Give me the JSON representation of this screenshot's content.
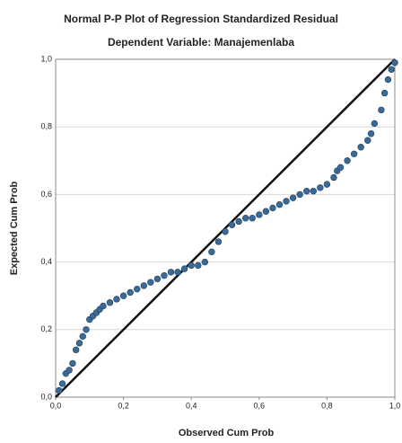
{
  "chart_data": {
    "type": "scatter",
    "title": "Normal P-P Plot of Regression Standardized Residual",
    "subtitle": "Dependent Variable: Manajemenlaba",
    "x_label": "Observed Cum Prob",
    "y_label": "Expected Cum Prob",
    "x": [
      0.01,
      0.02,
      0.03,
      0.04,
      0.05,
      0.06,
      0.07,
      0.08,
      0.09,
      0.1,
      0.11,
      0.12,
      0.13,
      0.14,
      0.16,
      0.18,
      0.2,
      0.22,
      0.24,
      0.26,
      0.28,
      0.3,
      0.32,
      0.34,
      0.36,
      0.38,
      0.4,
      0.42,
      0.44,
      0.46,
      0.48,
      0.5,
      0.52,
      0.54,
      0.56,
      0.58,
      0.6,
      0.62,
      0.64,
      0.66,
      0.68,
      0.7,
      0.72,
      0.74,
      0.76,
      0.78,
      0.8,
      0.82,
      0.83,
      0.84,
      0.86,
      0.88,
      0.9,
      0.92,
      0.93,
      0.94,
      0.96,
      0.97,
      0.98,
      0.99,
      1.0
    ],
    "values": [
      0.02,
      0.04,
      0.07,
      0.08,
      0.1,
      0.14,
      0.16,
      0.18,
      0.2,
      0.23,
      0.24,
      0.25,
      0.26,
      0.27,
      0.28,
      0.29,
      0.3,
      0.31,
      0.32,
      0.33,
      0.34,
      0.35,
      0.36,
      0.37,
      0.37,
      0.38,
      0.39,
      0.39,
      0.4,
      0.43,
      0.46,
      0.49,
      0.51,
      0.52,
      0.53,
      0.53,
      0.54,
      0.55,
      0.56,
      0.57,
      0.58,
      0.59,
      0.6,
      0.61,
      0.61,
      0.62,
      0.63,
      0.65,
      0.67,
      0.68,
      0.7,
      0.72,
      0.74,
      0.76,
      0.78,
      0.81,
      0.85,
      0.9,
      0.94,
      0.97,
      0.99
    ],
    "color": "#3a6a96",
    "xlim": [
      0,
      1
    ],
    "ylim": [
      0,
      1
    ],
    "xticks": [
      {
        "value": 0,
        "label": "0,0"
      },
      {
        "value": 0.2,
        "label": "0,2"
      },
      {
        "value": 0.4,
        "label": "0,4"
      },
      {
        "value": 0.6,
        "label": "0,6"
      },
      {
        "value": 0.8,
        "label": "0,8"
      },
      {
        "value": 1,
        "label": "1,0"
      }
    ],
    "yticks": [
      {
        "value": 0,
        "label": "0,0"
      },
      {
        "value": 0.2,
        "label": "0,2"
      },
      {
        "value": 0.4,
        "label": "0,4"
      },
      {
        "value": 0.6,
        "label": "0,6"
      },
      {
        "value": 0.8,
        "label": "0,8"
      },
      {
        "value": 1,
        "label": "1,0"
      }
    ],
    "grid": true,
    "diagonal": true
  }
}
